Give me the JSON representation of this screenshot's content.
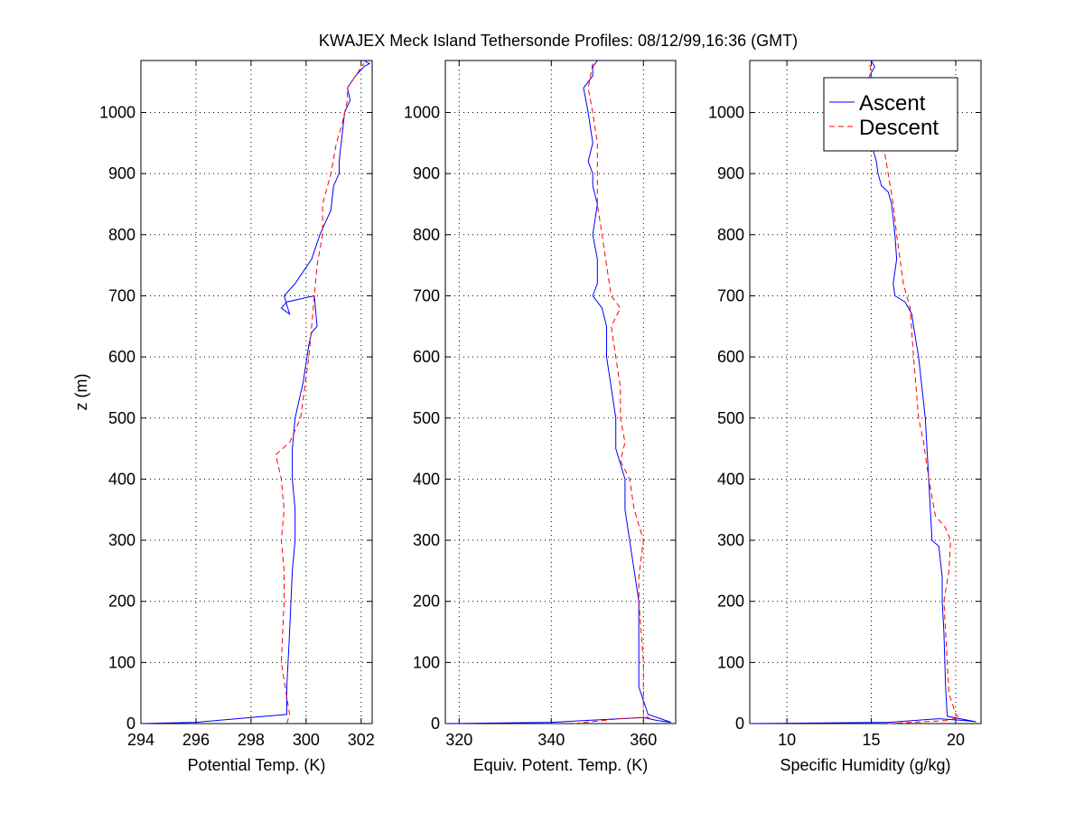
{
  "title": "KWAJEX Meck Island Tethersonde Profiles: 08/12/99,16:36 (GMT)",
  "colors": {
    "ascent": "#0000ff",
    "descent": "#ff0000",
    "grid": "#000000"
  },
  "chart_data": [
    {
      "type": "line",
      "xlabel": "Potential Temp. (K)",
      "ylabel": "z (m)",
      "xlim": [
        294,
        302.4
      ],
      "ylim": [
        0,
        1085
      ],
      "xticks": [
        294,
        296,
        298,
        300,
        302
      ],
      "yticks": [
        0,
        100,
        200,
        300,
        400,
        500,
        600,
        700,
        800,
        900,
        1000
      ],
      "grid": true,
      "series": [
        {
          "name": "Ascent",
          "x": [
            294,
            296,
            298,
            299.3,
            299.3,
            299.4,
            299.5,
            299.6,
            299.6,
            299.5,
            299.5,
            299.6,
            299.9,
            300.1,
            300.2,
            300.4,
            300.3,
            299.3,
            299.1,
            299.4,
            299.2,
            299.6,
            300.2,
            300.5,
            300.9,
            301.0,
            301.2,
            301.2,
            301.3,
            301.4,
            301.6,
            301.5,
            301.8,
            302.1,
            302.3,
            302.1
          ],
          "y": [
            0,
            2,
            10,
            15,
            60,
            150,
            250,
            300,
            350,
            400,
            450,
            500,
            560,
            620,
            640,
            650,
            700,
            690,
            680,
            670,
            700,
            720,
            760,
            800,
            840,
            880,
            900,
            920,
            960,
            1000,
            1020,
            1040,
            1060,
            1075,
            1080,
            1085
          ]
        },
        {
          "name": "Descent",
          "x": [
            299.3,
            299.4,
            299.1,
            299.2,
            299.2,
            299.1,
            299.2,
            299.1,
            298.9,
            299.4,
            299.8,
            300.1,
            300.2,
            300.3,
            300.4,
            300.6,
            300.6,
            300.9,
            301.1,
            301.3,
            301.5,
            301.5,
            301.8,
            302.1
          ],
          "y": [
            0,
            15,
            100,
            200,
            250,
            300,
            350,
            400,
            440,
            460,
            500,
            600,
            650,
            700,
            750,
            800,
            850,
            900,
            950,
            980,
            1020,
            1040,
            1060,
            1080
          ]
        }
      ]
    },
    {
      "type": "line",
      "xlabel": "Equiv. Potent. Temp. (K)",
      "ylabel": "",
      "xlim": [
        317,
        367
      ],
      "ylim": [
        0,
        1085
      ],
      "xticks": [
        320,
        340,
        360
      ],
      "yticks": [
        0,
        100,
        200,
        300,
        400,
        500,
        600,
        700,
        800,
        900,
        1000
      ],
      "grid": true,
      "series": [
        {
          "name": "Ascent",
          "x": [
            317,
            340,
            355,
            360,
            363,
            366,
            361,
            359,
            359,
            359,
            358,
            357,
            356,
            356,
            354,
            354,
            353,
            352,
            352,
            351,
            350,
            349,
            350,
            350,
            349,
            350,
            349,
            349,
            348,
            349,
            348,
            347,
            349,
            349,
            350
          ],
          "y": [
            0,
            2,
            8,
            10,
            5,
            2,
            15,
            60,
            150,
            200,
            250,
            300,
            350,
            400,
            450,
            500,
            550,
            600,
            650,
            680,
            690,
            700,
            720,
            760,
            800,
            850,
            880,
            900,
            920,
            950,
            1000,
            1040,
            1060,
            1075,
            1085
          ]
        },
        {
          "name": "Descent",
          "x": [
            345,
            355,
            361,
            362,
            360,
            360,
            359,
            359,
            360,
            358,
            357,
            355,
            356,
            355,
            355,
            354,
            353,
            355,
            353,
            352,
            351,
            350,
            350,
            350,
            349,
            348,
            349
          ],
          "y": [
            0,
            8,
            10,
            5,
            15,
            100,
            200,
            240,
            300,
            350,
            400,
            430,
            460,
            500,
            550,
            600,
            650,
            680,
            700,
            750,
            800,
            850,
            900,
            950,
            1000,
            1040,
            1080
          ]
        }
      ]
    },
    {
      "type": "line",
      "xlabel": "Specific Humidity (g/kg)",
      "ylabel": "",
      "xlim": [
        7.8,
        21.5
      ],
      "ylim": [
        0,
        1085
      ],
      "xticks": [
        10,
        15,
        20
      ],
      "yticks": [
        0,
        100,
        200,
        300,
        400,
        500,
        600,
        700,
        800,
        900,
        1000
      ],
      "grid": true,
      "series": [
        {
          "name": "Ascent",
          "x": [
            7.8,
            16,
            19,
            20.5,
            21.2,
            19.5,
            19.4,
            19.3,
            19.2,
            19.2,
            19.0,
            18.6,
            18.5,
            18.4,
            18.2,
            18.0,
            17.8,
            17.5,
            17.4,
            17.0,
            16.4,
            16.3,
            16.5,
            16.4,
            16.2,
            16.0,
            15.6,
            15.4,
            15.3,
            15.0,
            15.2,
            15.0,
            14.9,
            15.2,
            15.0
          ],
          "y": [
            0,
            2,
            8,
            5,
            3,
            12,
            60,
            150,
            200,
            240,
            290,
            300,
            350,
            400,
            500,
            550,
            600,
            650,
            670,
            690,
            700,
            720,
            760,
            800,
            850,
            870,
            880,
            900,
            920,
            950,
            1000,
            1040,
            1060,
            1075,
            1085
          ]
        },
        {
          "name": "Descent",
          "x": [
            16,
            19.5,
            20.2,
            20.0,
            19.6,
            19.5,
            19.4,
            19.3,
            19.6,
            19.7,
            19.4,
            18.8,
            18.6,
            18.3,
            18.1,
            17.8,
            17.5,
            17.3,
            16.9,
            16.5,
            16.3,
            16.0,
            15.7,
            15.4,
            15.1,
            14.9
          ],
          "y": [
            0,
            5,
            10,
            15,
            50,
            100,
            150,
            200,
            250,
            300,
            320,
            340,
            370,
            420,
            460,
            500,
            600,
            680,
            720,
            800,
            850,
            900,
            950,
            1000,
            1040,
            1080
          ]
        }
      ]
    }
  ],
  "legend": {
    "placement": "top-right",
    "entries": [
      "Ascent",
      "Descent"
    ]
  }
}
